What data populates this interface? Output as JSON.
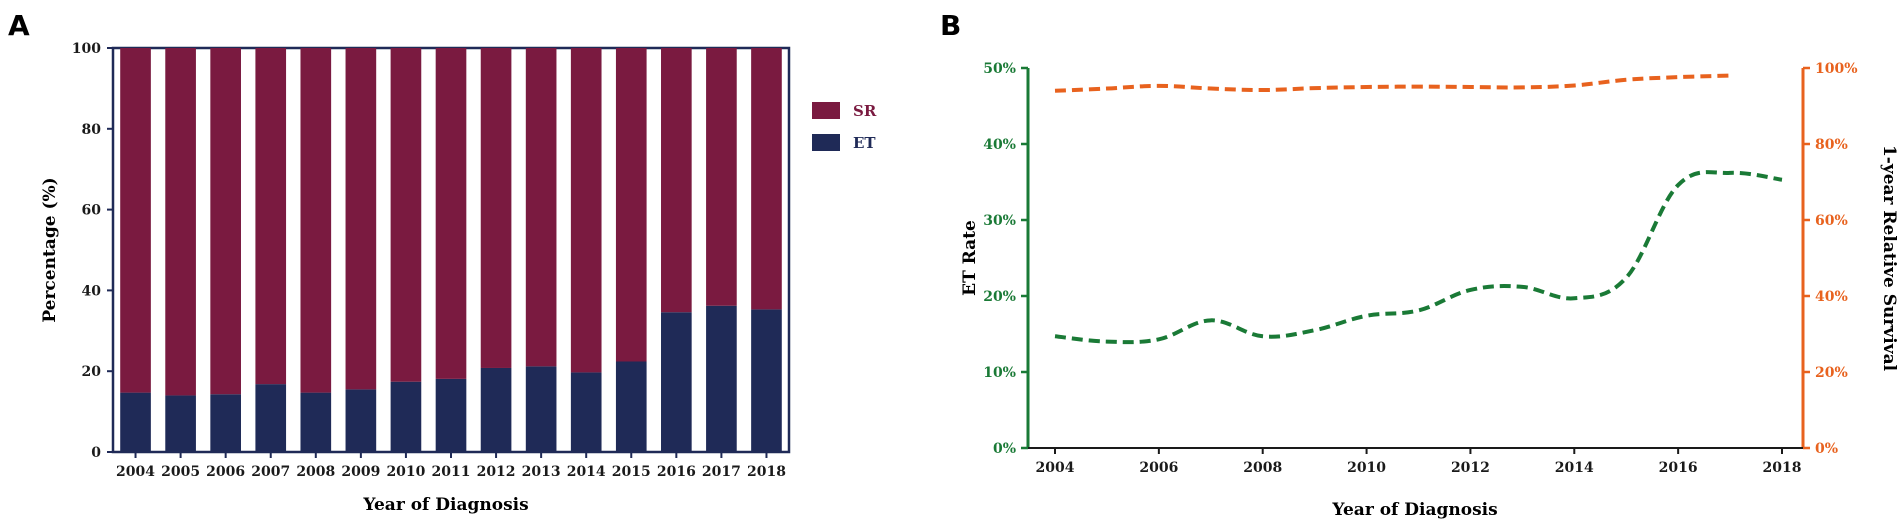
{
  "panels": {
    "a_label": "A",
    "b_label": "B"
  },
  "chart_data": [
    {
      "type": "bar",
      "stacked": true,
      "title": "",
      "xlabel": "Year of Diagnosis",
      "ylabel": "Percentage (%)",
      "ylim": [
        0,
        100
      ],
      "yticks": [
        "0",
        "20",
        "40",
        "60",
        "80",
        "100"
      ],
      "categories": [
        "2004",
        "2005",
        "2006",
        "2007",
        "2008",
        "2009",
        "2010",
        "2011",
        "2012",
        "2013",
        "2014",
        "2015",
        "2016",
        "2017",
        "2018"
      ],
      "series": [
        {
          "name": "ET",
          "color": "#1f2a57",
          "values": [
            14.7,
            14.0,
            14.3,
            16.8,
            14.7,
            15.5,
            17.4,
            18.1,
            20.8,
            21.2,
            19.7,
            22.4,
            34.6,
            36.2,
            35.3
          ]
        },
        {
          "name": "SR",
          "color": "#7a1a40",
          "values": [
            85.3,
            86.0,
            85.7,
            83.2,
            85.3,
            84.5,
            82.6,
            81.9,
            79.2,
            78.8,
            80.3,
            77.6,
            65.4,
            63.8,
            64.7
          ]
        }
      ],
      "legend": [
        {
          "name": "SR",
          "color": "#7a1a40"
        },
        {
          "name": "ET",
          "color": "#1f2a57"
        }
      ],
      "legend_placement": "right"
    },
    {
      "type": "line",
      "title": "",
      "xlabel": "Year of Diagnosis",
      "ylabel_left": "ET Rate",
      "ylabel_right": "1-year Relative Survival",
      "x": [
        2004,
        2005,
        2006,
        2007,
        2008,
        2009,
        2010,
        2011,
        2012,
        2013,
        2014,
        2015,
        2016,
        2017,
        2018
      ],
      "xlim": [
        2004,
        2018
      ],
      "xticks": [
        "2004",
        "2006",
        "2008",
        "2010",
        "2012",
        "2014",
        "2016",
        "2018"
      ],
      "ylim_left": [
        0,
        50
      ],
      "yticks_left": [
        "0%",
        "10%",
        "20%",
        "30%",
        "40%",
        "50%"
      ],
      "ylim_right": [
        0,
        100
      ],
      "yticks_right": [
        "0%",
        "20%",
        "40%",
        "60%",
        "80%",
        "100%"
      ],
      "series": [
        {
          "name": "ET Rate",
          "axis": "left",
          "color": "#1a7a36",
          "style": "dashed",
          "x": [
            2004,
            2005,
            2006,
            2007,
            2008,
            2009,
            2010,
            2011,
            2012,
            2013,
            2014,
            2015,
            2016,
            2017,
            2018
          ],
          "values": [
            14.7,
            14.0,
            14.3,
            16.8,
            14.7,
            15.5,
            17.4,
            18.1,
            20.8,
            21.2,
            19.7,
            22.4,
            34.6,
            36.2,
            35.3
          ]
        },
        {
          "name": "1-year Relative Survival",
          "axis": "right",
          "color": "#e8621e",
          "style": "dashed",
          "x": [
            2004,
            2005,
            2006,
            2007,
            2008,
            2009,
            2010,
            2011,
            2012,
            2013,
            2014,
            2015,
            2016,
            2017
          ],
          "values": [
            94.0,
            94.6,
            95.3,
            94.6,
            94.2,
            94.7,
            95.0,
            95.1,
            95.0,
            94.9,
            95.4,
            96.9,
            97.6,
            98.0
          ]
        }
      ]
    }
  ]
}
